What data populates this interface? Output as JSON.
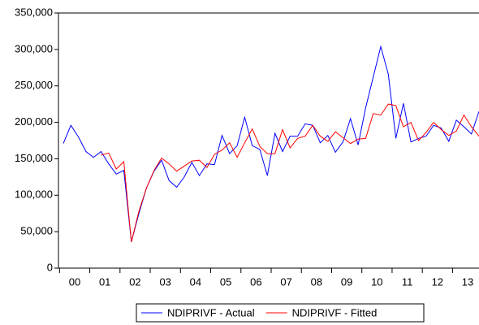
{
  "chart_data": {
    "type": "line",
    "categories": [
      "00",
      null,
      null,
      null,
      "01",
      null,
      null,
      null,
      "02",
      null,
      null,
      null,
      "03",
      null,
      null,
      null,
      "04",
      null,
      null,
      null,
      "05",
      null,
      null,
      null,
      "06",
      null,
      null,
      null,
      "07",
      null,
      null,
      null,
      "08",
      null,
      null,
      null,
      "09",
      null,
      null,
      null,
      "10",
      null,
      null,
      null,
      "11",
      null,
      null,
      null,
      "12",
      null,
      null,
      null,
      "13",
      null,
      null,
      null
    ],
    "series": [
      {
        "name": "NDIPRIVF - Actual",
        "color": "#0000ff",
        "values": [
          171000,
          196000,
          180000,
          160000,
          152000,
          160000,
          143000,
          129000,
          134000,
          36000,
          75000,
          110000,
          133000,
          148000,
          120000,
          111000,
          125000,
          145000,
          127000,
          143000,
          142000,
          182000,
          157000,
          168000,
          207000,
          168000,
          163000,
          127000,
          185000,
          160000,
          181000,
          181000,
          198000,
          196000,
          172000,
          182000,
          159000,
          173000,
          205000,
          169000,
          220000,
          262000,
          304000,
          266000,
          178000,
          226000,
          173000,
          178000,
          181000,
          196000,
          192000,
          174000,
          203000,
          194000,
          184000,
          215000
        ]
      },
      {
        "name": "NDIPRIVF - Fitted",
        "color": "#ff0000",
        "values": [
          null,
          null,
          null,
          null,
          null,
          155000,
          158000,
          136000,
          146000,
          36000,
          78000,
          110000,
          134000,
          151000,
          143000,
          133000,
          140000,
          147000,
          148000,
          138000,
          156000,
          162000,
          172000,
          152000,
          172000,
          191000,
          167000,
          157000,
          157000,
          190000,
          165000,
          178000,
          181000,
          196000,
          181000,
          174000,
          187000,
          179000,
          171000,
          177000,
          178000,
          212000,
          210000,
          225000,
          223000,
          194000,
          200000,
          175000,
          186000,
          200000,
          190000,
          182000,
          188000,
          210000,
          194000,
          181000
        ]
      }
    ],
    "ylim": [
      0,
      350000
    ],
    "yticks": [
      0,
      {
        "value": 50000,
        "label": "50,000"
      },
      {
        "value": 100000,
        "label": "100,000"
      },
      {
        "value": 150000,
        "label": "150,000"
      },
      {
        "value": 200000,
        "label": "200,000"
      },
      {
        "value": 250000,
        "label": "250,000"
      },
      {
        "value": 300000,
        "label": "300,000"
      },
      {
        "value": 350000,
        "label": "350,000"
      }
    ],
    "grid": false,
    "legend": "bottom"
  }
}
